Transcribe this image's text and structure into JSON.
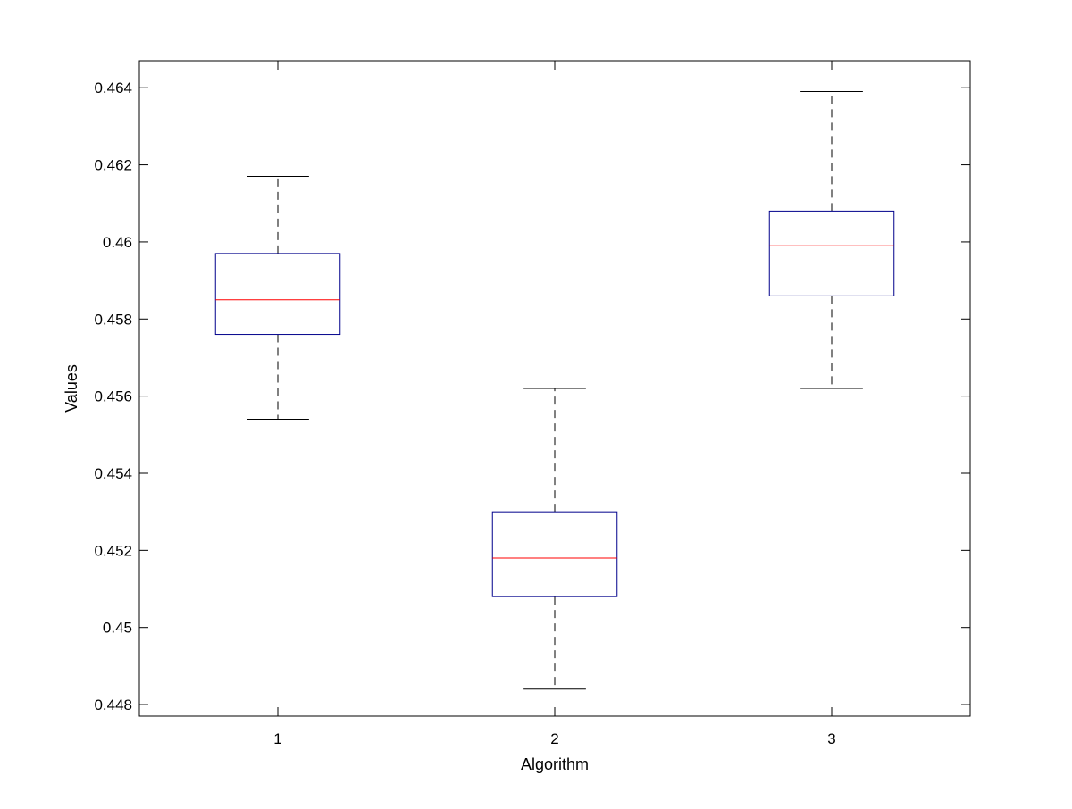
{
  "chart_data": {
    "type": "boxplot",
    "title": "",
    "xlabel": "Algorithm",
    "ylabel": "Values",
    "ylim": [
      0.4477,
      0.4647
    ],
    "xlim": [
      0.5,
      3.5
    ],
    "grid": false,
    "yticks": [
      0.448,
      0.45,
      0.452,
      0.454,
      0.456,
      0.458,
      0.46,
      0.462,
      0.464
    ],
    "ytick_labels": [
      "0.448",
      "0.45",
      "0.452",
      "0.454",
      "0.456",
      "0.458",
      "0.46",
      "0.462",
      "0.464"
    ],
    "categories": [
      "1",
      "2",
      "3"
    ],
    "boxes": [
      {
        "category": "1",
        "whisker_low": 0.4554,
        "q1": 0.4576,
        "median": 0.4585,
        "q3": 0.4597,
        "whisker_high": 0.4617
      },
      {
        "category": "2",
        "whisker_low": 0.4484,
        "q1": 0.4508,
        "median": 0.4518,
        "q3": 0.453,
        "whisker_high": 0.4562
      },
      {
        "category": "3",
        "whisker_low": 0.4562,
        "q1": 0.4586,
        "median": 0.4599,
        "q3": 0.4608,
        "whisker_high": 0.4639
      }
    ],
    "colors": {
      "box": "#00008b",
      "median": "#ff0000",
      "whisker": "#000000"
    }
  }
}
